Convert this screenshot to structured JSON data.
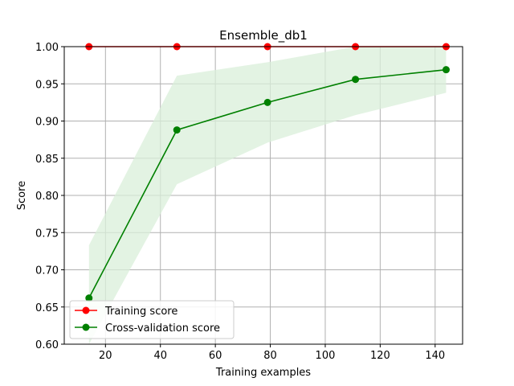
{
  "chart_data": {
    "type": "line",
    "title": "Ensemble_db1",
    "xlabel": "Training examples",
    "ylabel": "Score",
    "xlim": [
      5,
      150
    ],
    "ylim": [
      0.6,
      1.0
    ],
    "grid": true,
    "legend_position": "lower-left",
    "x_ticks": [
      20,
      40,
      60,
      80,
      100,
      120,
      140
    ],
    "y_ticks": [
      "0.60",
      "0.65",
      "0.70",
      "0.75",
      "0.80",
      "0.85",
      "0.90",
      "0.95",
      "1.00"
    ],
    "x": [
      14,
      46,
      79,
      111,
      144
    ],
    "series": [
      {
        "name": "Training score",
        "color": "#ff0000",
        "values": [
          1.0,
          1.0,
          1.0,
          1.0,
          1.0
        ],
        "band_lower": [
          1.0,
          1.0,
          1.0,
          1.0,
          1.0
        ],
        "band_upper": [
          1.0,
          1.0,
          1.0,
          1.0,
          1.0
        ]
      },
      {
        "name": "Cross-validation score",
        "color": "#008000",
        "band_color": "#d9efd9",
        "values": [
          0.662,
          0.888,
          0.925,
          0.956,
          0.969
        ],
        "band_lower": [
          0.592,
          0.815,
          0.871,
          0.908,
          0.938
        ],
        "band_upper": [
          0.733,
          0.961,
          0.979,
          1.004,
          1.0
        ]
      }
    ]
  }
}
